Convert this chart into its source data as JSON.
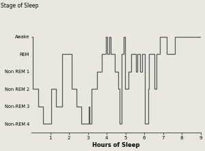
{
  "title": "Stage of Sleep",
  "xlabel": "Hours of Sleep",
  "ytick_labels": [
    "Awake",
    "REM",
    "Non REM 1",
    "Non REM 2",
    "Non-REM 3",
    "Non-REM 4"
  ],
  "ytick_values": [
    6,
    5,
    4,
    3,
    2,
    1
  ],
  "xlim": [
    0,
    9
  ],
  "ylim": [
    0.5,
    7.2
  ],
  "xticks": [
    1,
    2,
    3,
    4,
    5,
    6,
    7,
    8,
    9
  ],
  "line_color": "#555555",
  "line_width": 0.9,
  "background": "#e8e8e0",
  "hypnogram": [
    [
      0.0,
      6
    ],
    [
      0.07,
      6
    ],
    [
      0.07,
      3
    ],
    [
      0.35,
      3
    ],
    [
      0.35,
      2
    ],
    [
      0.6,
      2
    ],
    [
      0.6,
      1
    ],
    [
      1.05,
      1
    ],
    [
      1.05,
      3
    ],
    [
      1.3,
      3
    ],
    [
      1.3,
      2
    ],
    [
      1.65,
      2
    ],
    [
      1.65,
      5
    ],
    [
      2.15,
      5
    ],
    [
      2.15,
      3
    ],
    [
      2.4,
      3
    ],
    [
      2.4,
      2
    ],
    [
      2.65,
      2
    ],
    [
      2.65,
      1
    ],
    [
      3.05,
      1
    ],
    [
      3.05,
      2
    ],
    [
      3.1,
      2
    ],
    [
      3.1,
      1
    ],
    [
      3.2,
      1
    ],
    [
      3.2,
      3
    ],
    [
      3.5,
      3
    ],
    [
      3.5,
      4
    ],
    [
      3.75,
      4
    ],
    [
      3.75,
      5
    ],
    [
      3.95,
      5
    ],
    [
      3.95,
      6
    ],
    [
      4.05,
      6
    ],
    [
      4.05,
      5
    ],
    [
      4.15,
      5
    ],
    [
      4.15,
      6
    ],
    [
      4.22,
      6
    ],
    [
      4.22,
      5
    ],
    [
      4.45,
      5
    ],
    [
      4.45,
      4
    ],
    [
      4.6,
      4
    ],
    [
      4.6,
      3
    ],
    [
      4.7,
      3
    ],
    [
      4.7,
      1
    ],
    [
      4.78,
      1
    ],
    [
      4.78,
      5
    ],
    [
      4.9,
      5
    ],
    [
      4.9,
      6
    ],
    [
      4.98,
      6
    ],
    [
      4.98,
      3
    ],
    [
      5.15,
      3
    ],
    [
      5.15,
      4
    ],
    [
      5.3,
      4
    ],
    [
      5.3,
      5
    ],
    [
      5.55,
      5
    ],
    [
      5.55,
      4
    ],
    [
      5.65,
      4
    ],
    [
      5.65,
      5
    ],
    [
      5.78,
      5
    ],
    [
      5.78,
      4
    ],
    [
      5.88,
      4
    ],
    [
      5.88,
      5
    ],
    [
      6.05,
      5
    ],
    [
      6.05,
      1
    ],
    [
      6.2,
      1
    ],
    [
      6.2,
      3
    ],
    [
      6.25,
      3
    ],
    [
      6.25,
      5
    ],
    [
      6.55,
      5
    ],
    [
      6.55,
      3
    ],
    [
      6.65,
      3
    ],
    [
      6.65,
      5
    ],
    [
      6.85,
      5
    ],
    [
      6.85,
      6
    ],
    [
      7.2,
      6
    ],
    [
      7.2,
      5
    ],
    [
      7.65,
      5
    ],
    [
      7.65,
      6
    ],
    [
      9.0,
      6
    ]
  ]
}
